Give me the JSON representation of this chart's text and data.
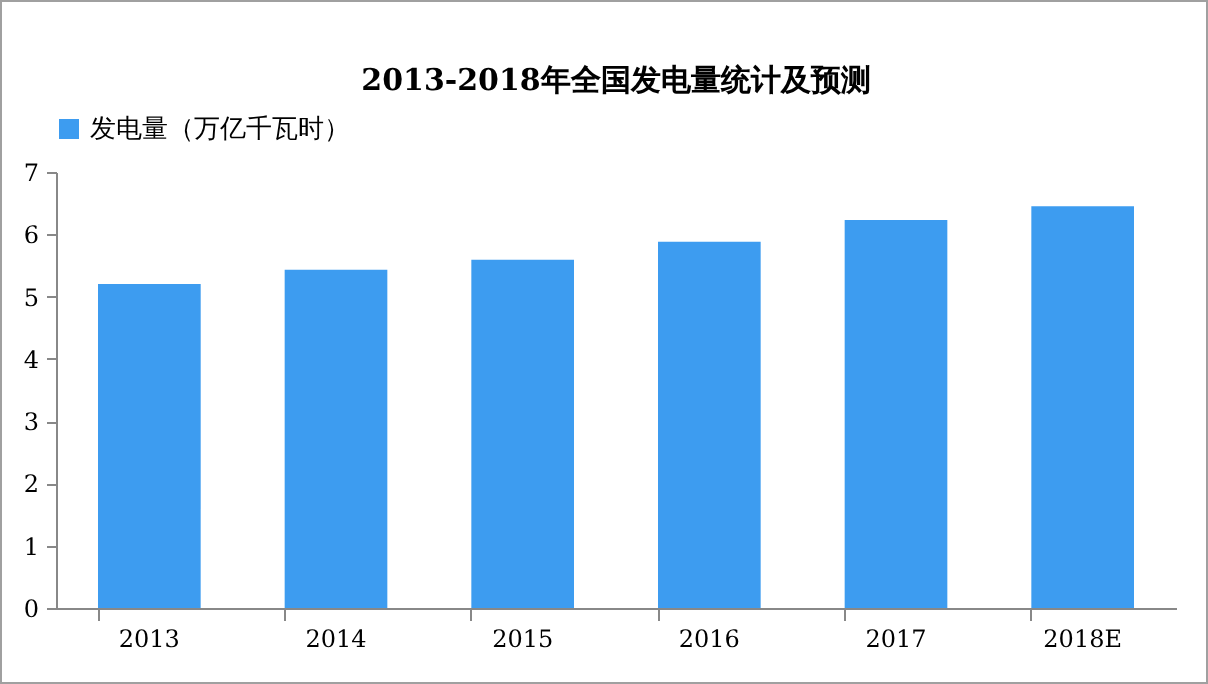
{
  "chart_data": {
    "type": "bar",
    "title": "2013-2018年全国发电量统计及预测",
    "categories": [
      "2013",
      "2014",
      "2015",
      "2016",
      "2017",
      "2018E"
    ],
    "series": [
      {
        "name": "发电量（万亿千瓦时）",
        "color": "#3d9cf0",
        "values": [
          5.2,
          5.43,
          5.59,
          5.88,
          6.23,
          6.45
        ]
      }
    ],
    "ylim": [
      0,
      7
    ],
    "yticks": [
      0,
      1,
      2,
      3,
      4,
      5,
      6,
      7
    ],
    "grid": false,
    "legend": "top"
  }
}
